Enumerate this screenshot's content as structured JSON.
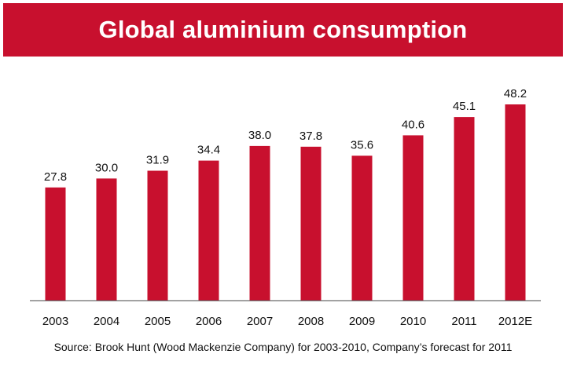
{
  "title": "Global aluminium consumption",
  "source": "Source: Brook Hunt (Wood Mackenzie Company) for 2003-2010, Company’s forecast for 2011",
  "colors": {
    "banner": "#c8102e",
    "bar": "#c8102e",
    "axis": "#444444"
  },
  "chart_data": {
    "type": "bar",
    "categories": [
      "2003",
      "2004",
      "2005",
      "2006",
      "2007",
      "2008",
      "2009",
      "2010",
      "2011",
      "2012E"
    ],
    "values": [
      27.8,
      30.0,
      31.9,
      34.4,
      38.0,
      37.8,
      35.6,
      40.6,
      45.1,
      48.2
    ],
    "value_labels": [
      "27.8",
      "30.0",
      "31.9",
      "34.4",
      "38.0",
      "37.8",
      "35.6",
      "40.6",
      "45.1",
      "48.2"
    ],
    "title": "Global aluminium consumption",
    "xlabel": "",
    "ylabel": "",
    "ylim": [
      0,
      48.2
    ],
    "grid": false,
    "legend": "none"
  }
}
